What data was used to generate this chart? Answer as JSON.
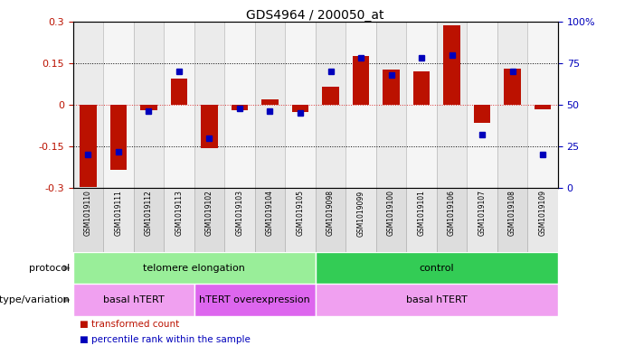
{
  "title": "GDS4964 / 200050_at",
  "samples": [
    "GSM1019110",
    "GSM1019111",
    "GSM1019112",
    "GSM1019113",
    "GSM1019102",
    "GSM1019103",
    "GSM1019104",
    "GSM1019105",
    "GSM1019098",
    "GSM1019099",
    "GSM1019100",
    "GSM1019101",
    "GSM1019106",
    "GSM1019107",
    "GSM1019108",
    "GSM1019109"
  ],
  "bar_values": [
    -0.295,
    -0.235,
    -0.02,
    0.095,
    -0.155,
    -0.02,
    0.02,
    -0.025,
    0.065,
    0.175,
    0.125,
    0.12,
    0.285,
    -0.065,
    0.13,
    -0.015
  ],
  "dot_values": [
    20,
    22,
    46,
    70,
    30,
    48,
    46,
    45,
    70,
    78,
    68,
    78,
    80,
    32,
    70,
    20
  ],
  "ylim": [
    -0.3,
    0.3
  ],
  "y2lim": [
    0,
    100
  ],
  "yticks": [
    -0.3,
    -0.15,
    0,
    0.15,
    0.3
  ],
  "y2ticks": [
    0,
    25,
    50,
    75,
    100
  ],
  "hlines_dotted": [
    -0.15,
    0.15
  ],
  "hline_zero": 0,
  "bar_color": "#bb1100",
  "dot_color": "#0000bb",
  "zero_line_color": "#dd3333",
  "hline_color": "#000000",
  "protocol_groups": [
    {
      "label": "telomere elongation",
      "start": 0,
      "end": 7,
      "color": "#99ee99"
    },
    {
      "label": "control",
      "start": 8,
      "end": 15,
      "color": "#33cc55"
    }
  ],
  "genotype_groups": [
    {
      "label": "basal hTERT",
      "start": 0,
      "end": 3,
      "color": "#f0a0f0"
    },
    {
      "label": "hTERT overexpression",
      "start": 4,
      "end": 7,
      "color": "#dd66ee"
    },
    {
      "label": "basal hTERT",
      "start": 8,
      "end": 15,
      "color": "#f0a0f0"
    }
  ],
  "legend_items": [
    {
      "color": "#bb1100",
      "label": "transformed count"
    },
    {
      "color": "#0000bb",
      "label": "percentile rank within the sample"
    }
  ],
  "protocol_label": "protocol",
  "genotype_label": "genotype/variation"
}
